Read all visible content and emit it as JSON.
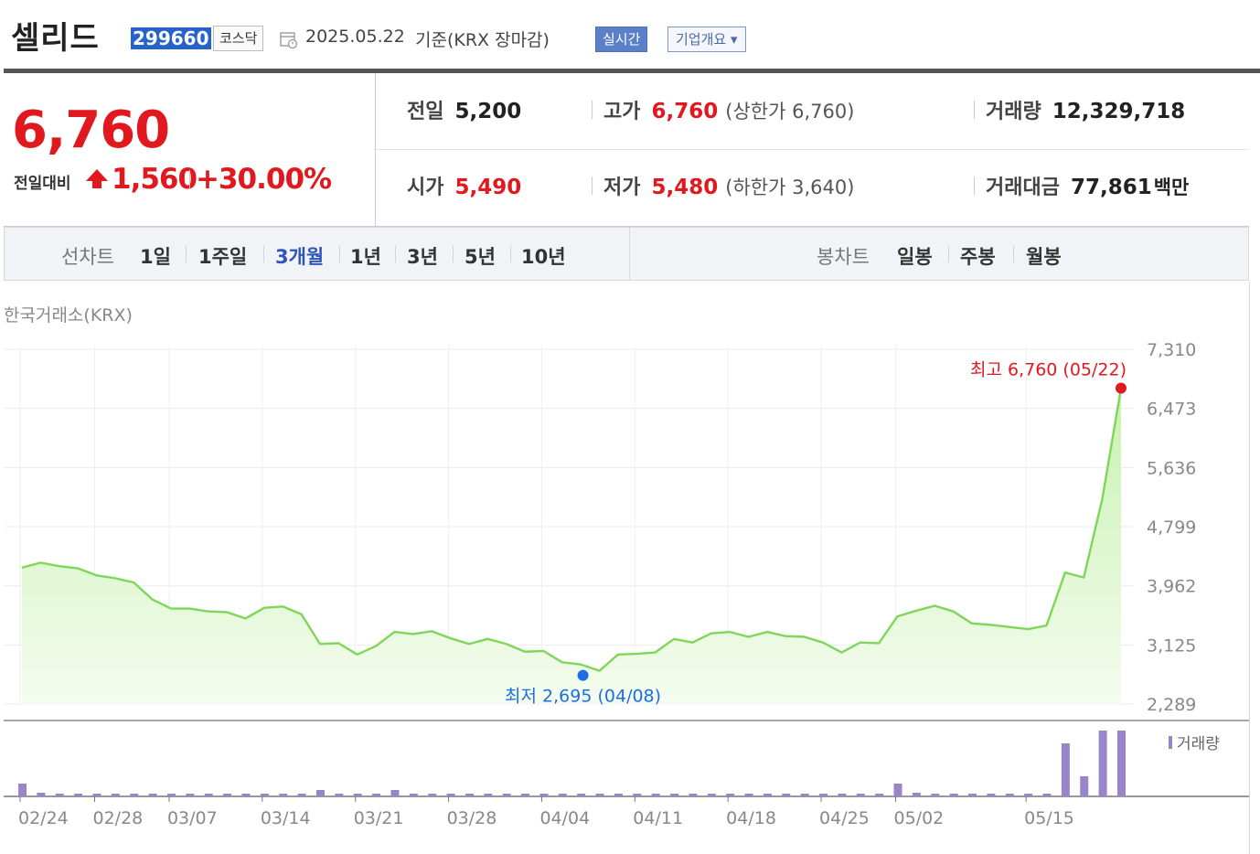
{
  "header": {
    "name": "셀리드",
    "code": "299660",
    "market": "코스닥",
    "date": "2025.05.22",
    "basis": "기준(KRX 장마감)",
    "realtime_btn": "실시간",
    "company_btn": "기업개요 ▾"
  },
  "quote": {
    "price": "6,760",
    "change_label": "전일대비",
    "change": "1,560",
    "change_pct": "+30.00%",
    "prev_label": "전일",
    "prev": "5,200",
    "open_label": "시가",
    "open": "5,490",
    "high_label": "고가",
    "high": "6,760",
    "high_limit": "(상한가 6,760)",
    "low_label": "저가",
    "low": "5,480",
    "low_limit": "(하한가 3,640)",
    "volume_label": "거래량",
    "volume": "12,329,718",
    "value_label": "거래대금",
    "value": "77,861",
    "value_unit": "백만"
  },
  "tabs": {
    "line_label": "선차트",
    "periods": [
      "1일",
      "1주일",
      "3개월",
      "1년",
      "3년",
      "5년",
      "10년"
    ],
    "active": "3개월",
    "candle_label": "봉차트",
    "candles": [
      "일봉",
      "주봉",
      "월봉"
    ]
  },
  "chart_data": {
    "type": "area",
    "source": "한국거래소(KRX)",
    "x_ticks": [
      "02/24",
      "02/28",
      "03/07",
      "03/14",
      "03/21",
      "03/28",
      "04/04",
      "04/11",
      "04/18",
      "04/25",
      "05/02",
      "05/15"
    ],
    "y_ticks": [
      "7,310",
      "6,473",
      "5,636",
      "4,799",
      "3,962",
      "3,125",
      "2,289"
    ],
    "ylim": [
      2289,
      7310
    ],
    "high_annotation": "최고 6,760 (05/22)",
    "low_annotation": "최저 2,695 (04/08)",
    "volume_label": "거래량",
    "colors": {
      "line": "#7ed65a",
      "fill_top": "#c8f2b0",
      "fill_bottom": "#f4fcef",
      "high": "#e1191e",
      "low": "#1d6fe0",
      "volume": "#9a85c8"
    },
    "series": [
      {
        "values": [
          4220,
          4290,
          4240,
          4210,
          4110,
          4070,
          4010,
          3770,
          3640,
          3640,
          3600,
          3590,
          3500,
          3650,
          3670,
          3560,
          3140,
          3150,
          2990,
          3110,
          3310,
          3280,
          3320,
          3220,
          3140,
          3210,
          3140,
          3030,
          3040,
          2880,
          2850,
          2760,
          2990,
          3000,
          3020,
          3210,
          3160,
          3290,
          3310,
          3240,
          3310,
          3250,
          3240,
          3160,
          3020,
          3160,
          3150,
          3530,
          3610,
          3680,
          3600,
          3430,
          3410,
          3380,
          3350,
          3400,
          4150,
          4080,
          5200,
          6760
        ]
      }
    ],
    "volume": [
      14,
      4,
      3,
      3,
      3,
      3,
      3,
      3,
      3,
      3,
      3,
      3,
      3,
      3,
      3,
      3,
      7,
      3,
      3,
      3,
      7,
      3,
      3,
      3,
      3,
      3,
      3,
      3,
      3,
      3,
      3,
      3,
      3,
      3,
      3,
      3,
      3,
      3,
      3,
      3,
      3,
      3,
      3,
      3,
      3,
      3,
      3,
      14,
      4,
      3,
      3,
      3,
      3,
      3,
      3,
      3,
      58,
      22,
      72,
      72
    ]
  }
}
